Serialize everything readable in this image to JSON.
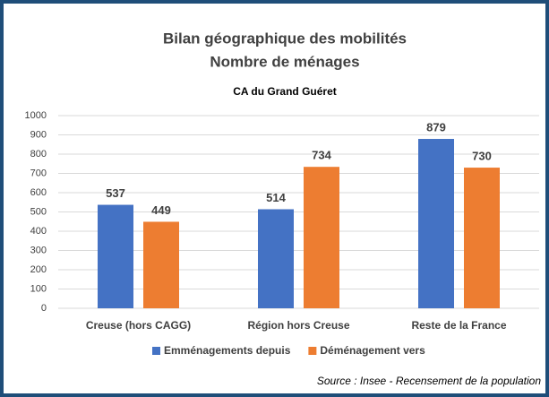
{
  "chart_data": {
    "type": "bar",
    "title": "Bilan géographique des mobilités",
    "subtitle": "Nombre de ménages",
    "chart_title": "CA du Grand Guéret",
    "source": "Source : Insee - Recensement de la population",
    "categories": [
      "Creuse (hors CAGG)",
      "Région hors Creuse",
      "Reste de la France"
    ],
    "series": [
      {
        "name": "Emménagements depuis",
        "color": "#4472c4",
        "values": [
          537,
          514,
          879
        ]
      },
      {
        "name": "Déménagement vers",
        "color": "#ed7d31",
        "values": [
          449,
          734,
          730
        ]
      }
    ],
    "ylim": [
      0,
      1000
    ],
    "yticks": [
      0,
      100,
      200,
      300,
      400,
      500,
      600,
      700,
      800,
      900,
      1000
    ],
    "grid": true,
    "legend": "bottom"
  }
}
